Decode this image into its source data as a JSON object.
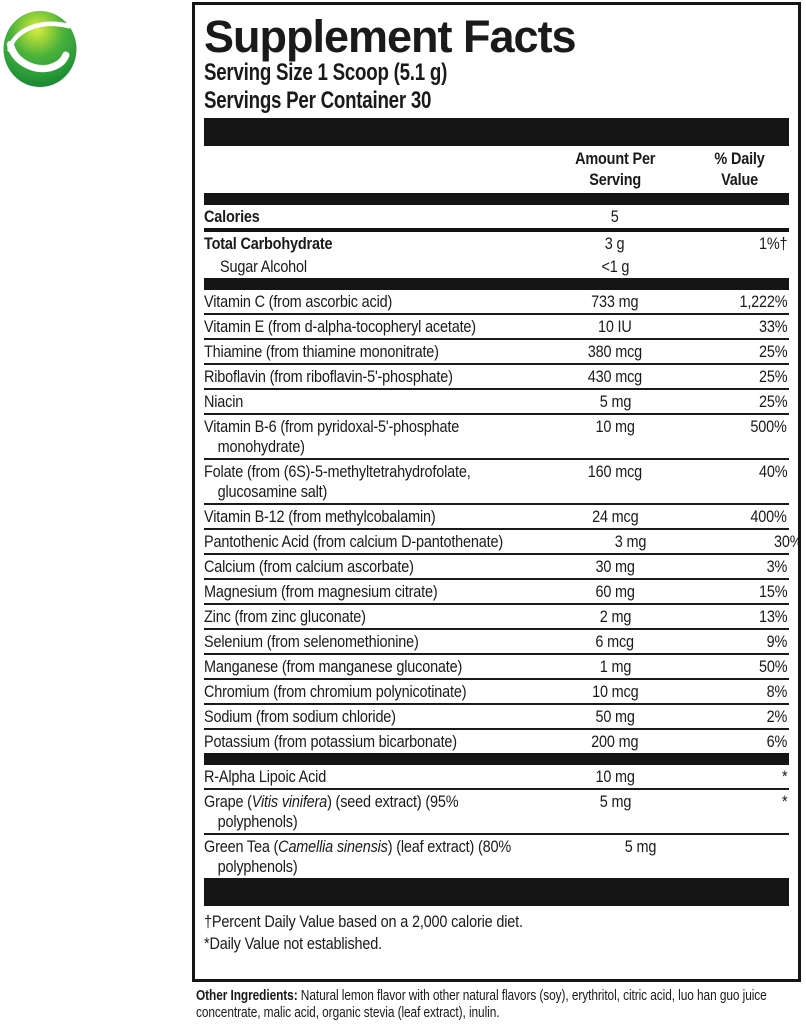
{
  "logo": {
    "name": "green-sphere-swoosh-logo"
  },
  "colors": {
    "text": "#1a1a1a",
    "bar": "#151515",
    "border": "#151515",
    "logo_highlight": "#d8ed4a",
    "logo_green_mid": "#4cb23c",
    "logo_green_dark": "#158230",
    "swoosh": "#ffffff"
  },
  "label": {
    "title": "Supplement Facts",
    "serving_size": "Serving Size 1 Scoop (5.1 g)",
    "servings_per_container": "Servings Per Container 30",
    "col_headers": {
      "amount": [
        "Amount Per",
        "Serving"
      ],
      "dv": [
        "% Daily",
        "Value"
      ]
    },
    "rows": [
      {
        "sep": "none",
        "bold": true,
        "label": [
          [
            "Calories"
          ]
        ],
        "amount": "5",
        "dv": ""
      },
      {
        "sep": "medium",
        "bold": true,
        "label": [
          [
            "Total Carbohydrate"
          ]
        ],
        "amount": "3 g",
        "dv": "1%†"
      },
      {
        "sep": "none",
        "indent": true,
        "label": [
          [
            "Sugar Alcohol"
          ]
        ],
        "amount": "<1 g",
        "dv": ""
      },
      {
        "sep": "bar",
        "label": [
          [
            "Vitamin C (from ascorbic acid)"
          ]
        ],
        "amount": "733 mg",
        "dv": "1,222%"
      },
      {
        "sep": "thin",
        "label": [
          [
            "Vitamin E (from d-alpha-tocopheryl acetate)"
          ]
        ],
        "amount": "10 IU",
        "dv": "33%"
      },
      {
        "sep": "thin",
        "label": [
          [
            "Thiamine (from thiamine mononitrate)"
          ]
        ],
        "amount": "380 mcg",
        "dv": "25%"
      },
      {
        "sep": "thin",
        "label": [
          [
            "Riboflavin (from riboflavin-5'-phosphate)"
          ]
        ],
        "amount": "430 mcg",
        "dv": "25%"
      },
      {
        "sep": "thin",
        "label": [
          [
            "Niacin"
          ]
        ],
        "amount": "5 mg",
        "dv": "25%"
      },
      {
        "sep": "thin",
        "label": [
          [
            "Vitamin B-6 (from pyridoxal-5'-phosphate"
          ],
          [
            "monohydrate)"
          ]
        ],
        "amount": "10 mg",
        "dv": "500%"
      },
      {
        "sep": "thin",
        "label": [
          [
            "Folate (from (6S)-5-methyltetrahydrofolate,"
          ],
          [
            "glucosamine salt)"
          ]
        ],
        "amount": "160 mcg",
        "dv": "40%"
      },
      {
        "sep": "thin",
        "label": [
          [
            "Vitamin B-12 (from methylcobalamin)"
          ]
        ],
        "amount": "24 mcg",
        "dv": "400%"
      },
      {
        "sep": "thin",
        "label": [
          [
            "Pantothenic Acid (from calcium D-pantothenate)"
          ]
        ],
        "amount": "3 mg",
        "dv": "30%"
      },
      {
        "sep": "thin",
        "label": [
          [
            "Calcium (from calcium ascorbate)"
          ]
        ],
        "amount": "30 mg",
        "dv": "3%"
      },
      {
        "sep": "thin",
        "label": [
          [
            "Magnesium (from magnesium citrate)"
          ]
        ],
        "amount": "60 mg",
        "dv": "15%"
      },
      {
        "sep": "thin",
        "label": [
          [
            "Zinc (from zinc gluconate)"
          ]
        ],
        "amount": "2 mg",
        "dv": "13%"
      },
      {
        "sep": "thin",
        "label": [
          [
            "Selenium (from selenomethionine)"
          ]
        ],
        "amount": "6 mcg",
        "dv": "9%"
      },
      {
        "sep": "thin",
        "label": [
          [
            "Manganese (from manganese gluconate)"
          ]
        ],
        "amount": "1 mg",
        "dv": "50%"
      },
      {
        "sep": "thin",
        "label": [
          [
            "Chromium (from chromium polynicotinate)"
          ]
        ],
        "amount": "10 mcg",
        "dv": "8%"
      },
      {
        "sep": "thin",
        "label": [
          [
            "Sodium (from sodium chloride)"
          ]
        ],
        "amount": "50 mg",
        "dv": "2%"
      },
      {
        "sep": "thin",
        "label": [
          [
            "Potassium (from potassium bicarbonate)"
          ]
        ],
        "amount": "200 mg",
        "dv": "6%"
      },
      {
        "sep": "bar",
        "label": [
          [
            "R-Alpha Lipoic Acid"
          ]
        ],
        "amount": "10 mg",
        "dv": "*"
      },
      {
        "sep": "thin",
        "label": [
          [
            {
              "t": "Grape ("
            },
            {
              "t": "Vitis vinifera",
              "i": true
            },
            {
              "t": ") (seed extract) (95%"
            }
          ],
          [
            "polyphenols)"
          ]
        ],
        "amount": "5 mg",
        "dv": "*"
      },
      {
        "sep": "thin",
        "label": [
          [
            {
              "t": "Green Tea ("
            },
            {
              "t": "Camellia sinensis",
              "i": true
            },
            {
              "t": ") (leaf extract) (80%"
            }
          ],
          [
            "polyphenols)"
          ]
        ],
        "amount": "5 mg",
        "dv": "*"
      }
    ],
    "footnotes": [
      "†Percent Daily Value based on a 2,000 calorie diet.",
      "*Daily Value not established."
    ]
  },
  "other_ingredients": {
    "lead": "Other Ingredients:",
    "line1_rest": " Natural lemon flavor with other natural flavors (soy), erythritol, citric acid, luo han guo juice",
    "line2": "concentrate, malic acid, organic stevia (leaf extract), inulin."
  }
}
